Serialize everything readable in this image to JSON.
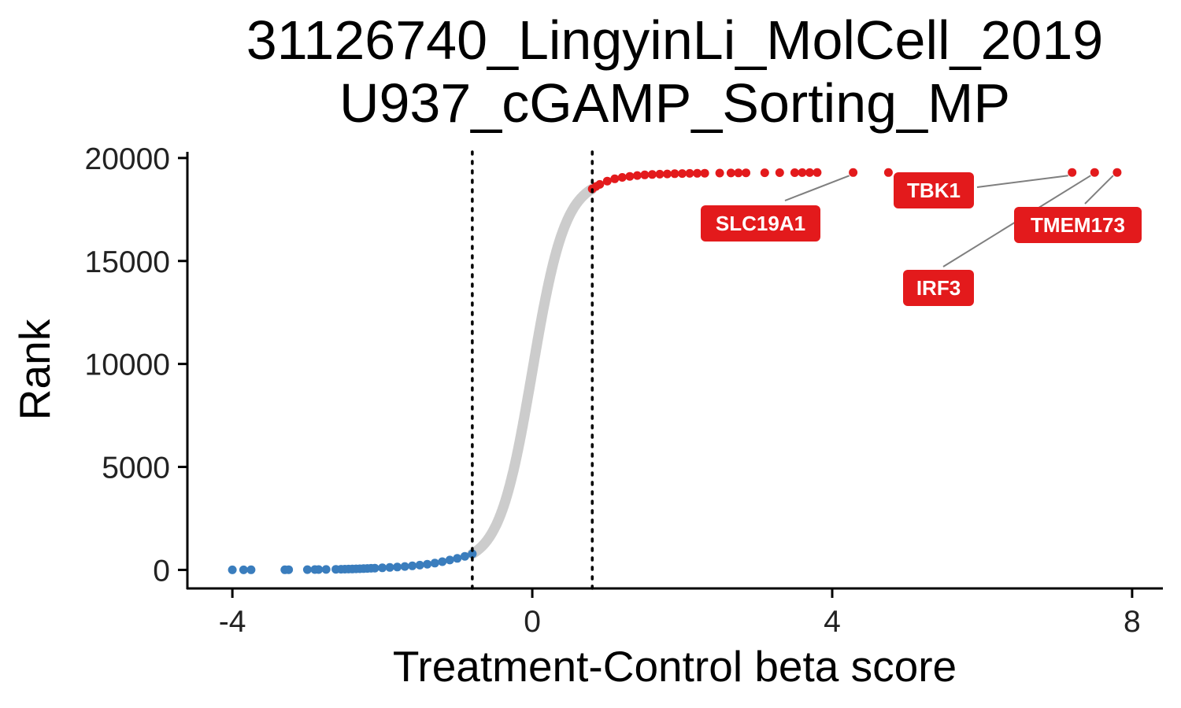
{
  "chart_data": {
    "type": "scatter",
    "title": [
      "31126740_LingyinLi_MolCell_2019",
      "U937_cGAMP_Sorting_MP"
    ],
    "xlabel": "Treatment-Control beta score",
    "ylabel": "Rank",
    "xlim": [
      -4.6,
      8.4
    ],
    "ylim": [
      -900,
      20300
    ],
    "xticks": [
      -4,
      0,
      4,
      8
    ],
    "xtick_labels": [
      "-4",
      "0",
      "4",
      "8"
    ],
    "yticks": [
      0,
      5000,
      10000,
      15000,
      20000
    ],
    "ytick_labels": [
      "0",
      "5000",
      "10000",
      "15000",
      "20000"
    ],
    "total_genes": 19300,
    "thresholds": [
      -0.8,
      0.8
    ],
    "grid": false,
    "legend": "none",
    "colors": {
      "negative": "#3a7dbd",
      "neutral": "#cccccc",
      "positive": "#e31a1c",
      "label_fill": "#e31a1c",
      "label_text": "#ffffff",
      "connector": "#7f7f7f",
      "threshold": "#000000"
    },
    "series": [
      {
        "group": "negative",
        "x": [
          -4.0,
          -3.85,
          -3.75,
          -3.3,
          -3.25,
          -3.0,
          -2.9,
          -2.85,
          -2.75,
          -2.62,
          -2.55,
          -2.5,
          -2.45,
          -2.4,
          -2.35,
          -2.3,
          -2.25,
          -2.2,
          -2.15,
          -2.1,
          -2.0,
          -1.9,
          -1.8,
          -1.7,
          -1.6,
          -1.5,
          -1.4,
          -1.3,
          -1.2,
          -1.1,
          -1.0,
          -0.9,
          -0.8
        ],
        "y": [
          0,
          2,
          4,
          6,
          8,
          12,
          15,
          18,
          22,
          28,
          32,
          36,
          40,
          45,
          50,
          56,
          62,
          70,
          78,
          85,
          100,
          118,
          140,
          165,
          195,
          230,
          275,
          330,
          400,
          480,
          560,
          660,
          780
        ]
      },
      {
        "group": "positive",
        "x": [
          0.8,
          0.85,
          0.9,
          1.0,
          1.1,
          1.2,
          1.3,
          1.4,
          1.5,
          1.6,
          1.7,
          1.8,
          1.9,
          2.0,
          2.1,
          2.2,
          2.3,
          2.5,
          2.65,
          2.75,
          2.85,
          3.1,
          3.3,
          3.5,
          3.6,
          3.7,
          3.8
        ],
        "y": [
          18500,
          18620,
          18720,
          18880,
          18990,
          19060,
          19110,
          19150,
          19180,
          19200,
          19215,
          19228,
          19238,
          19246,
          19252,
          19258,
          19262,
          19268,
          19272,
          19276,
          19280,
          19283,
          19286,
          19289,
          19291,
          19293,
          19295
        ]
      }
    ],
    "highlighted": [
      {
        "gene": "SLC19A1",
        "x": 4.28,
        "y": 19296
      },
      {
        "gene": "TBK1",
        "x": 7.2,
        "y": 19298
      },
      {
        "gene": "IRF3",
        "x": 7.5,
        "y": 19299
      },
      {
        "gene": "TMEM173",
        "x": 7.8,
        "y": 19300
      }
    ],
    "extra_points": [
      {
        "x": 4.75,
        "y": 19297
      }
    ]
  }
}
